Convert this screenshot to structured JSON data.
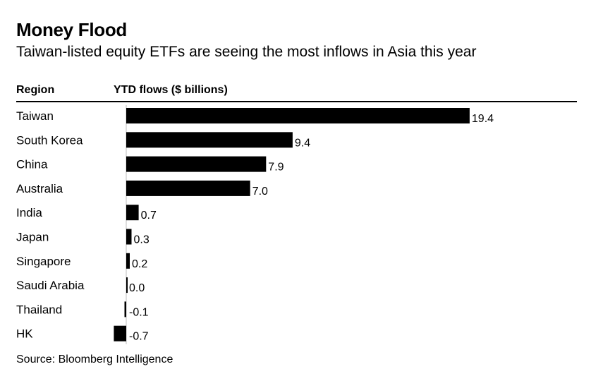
{
  "title": "Money Flood",
  "subtitle": "Taiwan-listed equity ETFs are seeing the most inflows in Asia this year",
  "columns": {
    "region": "Region",
    "value": "YTD flows ($ billions)"
  },
  "source": "Source: Bloomberg Intelligence",
  "chart_data": {
    "type": "bar",
    "orientation": "horizontal",
    "categories": [
      "Taiwan",
      "South Korea",
      "China",
      "Australia",
      "India",
      "Japan",
      "Singapore",
      "Saudi Arabia",
      "Thailand",
      "HK"
    ],
    "values": [
      19.4,
      9.4,
      7.9,
      7.0,
      0.7,
      0.3,
      0.2,
      0.0,
      -0.1,
      -0.7
    ],
    "value_labels": [
      "19.4",
      "9.4",
      "7.9",
      "7.0",
      "0.7",
      "0.3",
      "0.2",
      "0.0",
      "-0.1",
      "-0.7"
    ],
    "title": "Money Flood",
    "subtitle": "Taiwan-listed equity ETFs are seeing the most inflows in Asia this year",
    "xlabel": "YTD flows ($ billions)",
    "ylabel": "Region",
    "xlim": [
      -0.7,
      19.4
    ],
    "grid": false,
    "bar_color": "#000000"
  }
}
